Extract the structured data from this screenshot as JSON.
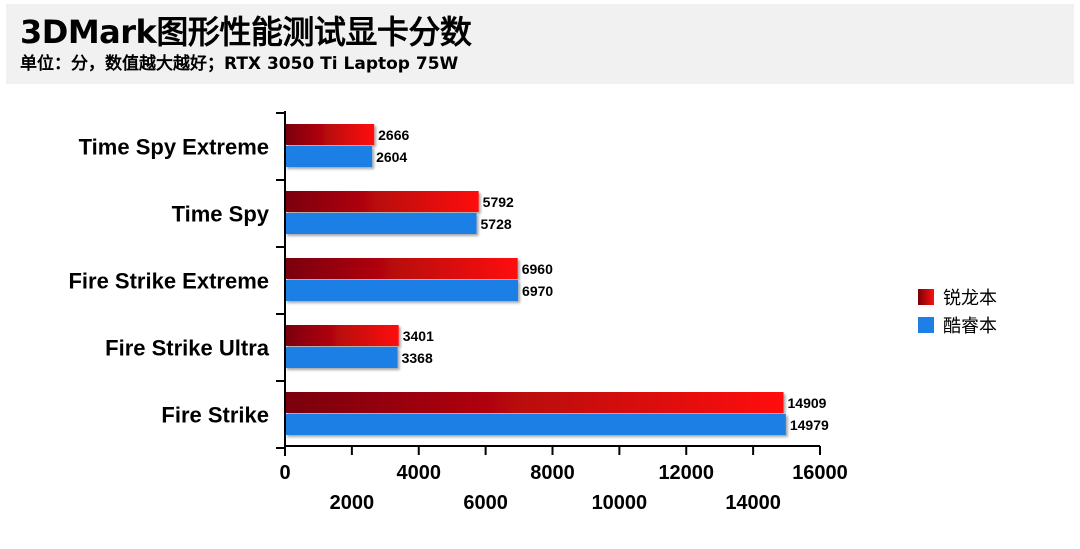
{
  "header": {
    "title": "3DMark图形性能测试显卡分数",
    "subtitle": "单位：分，数值越大越好；RTX 3050 Ti Laptop 75W"
  },
  "colors": {
    "series1_dark": "#7a0008",
    "series1_light": "#ff0f0f",
    "series2": "#1e7fe6",
    "header_bg": "#f1f1f1"
  },
  "chart_data": {
    "type": "bar",
    "orientation": "horizontal",
    "title": "3DMark图形性能测试显卡分数",
    "subtitle": "单位：分，数值越大越好；RTX 3050 Ti Laptop 75W",
    "categories": [
      "Time Spy Extreme",
      "Time Spy",
      "Fire Strike Extreme",
      "Fire Strike Ultra",
      "Fire Strike"
    ],
    "series": [
      {
        "name": "锐龙本",
        "values": [
          2666,
          5792,
          6960,
          3401,
          14909
        ]
      },
      {
        "name": "酷睿本",
        "values": [
          2604,
          5728,
          6970,
          3368,
          14979
        ]
      }
    ],
    "xlim": [
      0,
      16000
    ],
    "xticks": [
      0,
      2000,
      4000,
      6000,
      8000,
      10000,
      12000,
      14000,
      16000
    ],
    "xticks_upper": [
      "0",
      "4000",
      "8000",
      "12000",
      "16000"
    ],
    "xticks_lower": [
      "2000",
      "6000",
      "10000",
      "14000"
    ],
    "grid": false,
    "legend_position": "right"
  }
}
